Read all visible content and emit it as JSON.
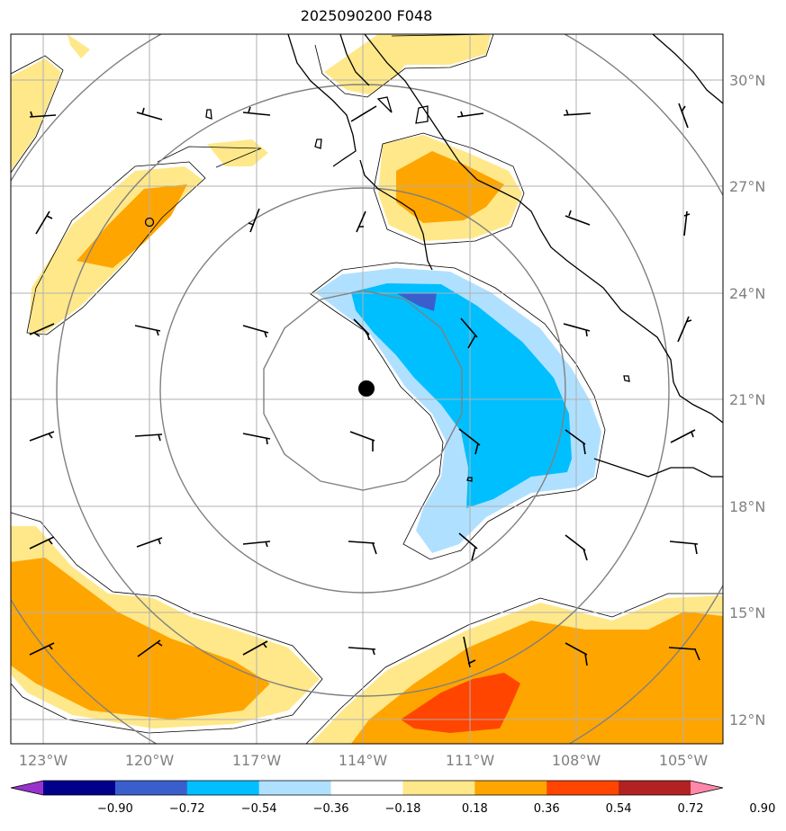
{
  "title": "2025090200 F048",
  "lat_labels": [
    "30°N",
    "27°N",
    "24°N",
    "21°N",
    "18°N",
    "15°N",
    "12°N"
  ],
  "lon_labels": [
    "123°W",
    "120°W",
    "117°W",
    "114°W",
    "111°W",
    "108°W",
    "105°W"
  ],
  "colorbar": {
    "labels": [
      "−0.90",
      "−0.72",
      "−0.54",
      "−0.36",
      "−0.18",
      "0.18",
      "0.36",
      "0.54",
      "0.72",
      "0.90"
    ],
    "colors": [
      "#9932cc",
      "#00008b",
      "#3a5fcd",
      "#00bfff",
      "#b0e0ff",
      "#ffffff",
      "#ffe88a",
      "#ffa500",
      "#ff4500",
      "#b22222",
      "#ff88aa"
    ]
  },
  "fill_colors": {
    "light_yellow": "#ffe88a",
    "orange": "#ffa500",
    "red_orange": "#ff4500",
    "light_blue": "#b0e0ff",
    "deep_sky_blue": "#00bfff",
    "royal_blue": "#3a5fcd"
  },
  "storm_center_marker": "black-dot"
}
